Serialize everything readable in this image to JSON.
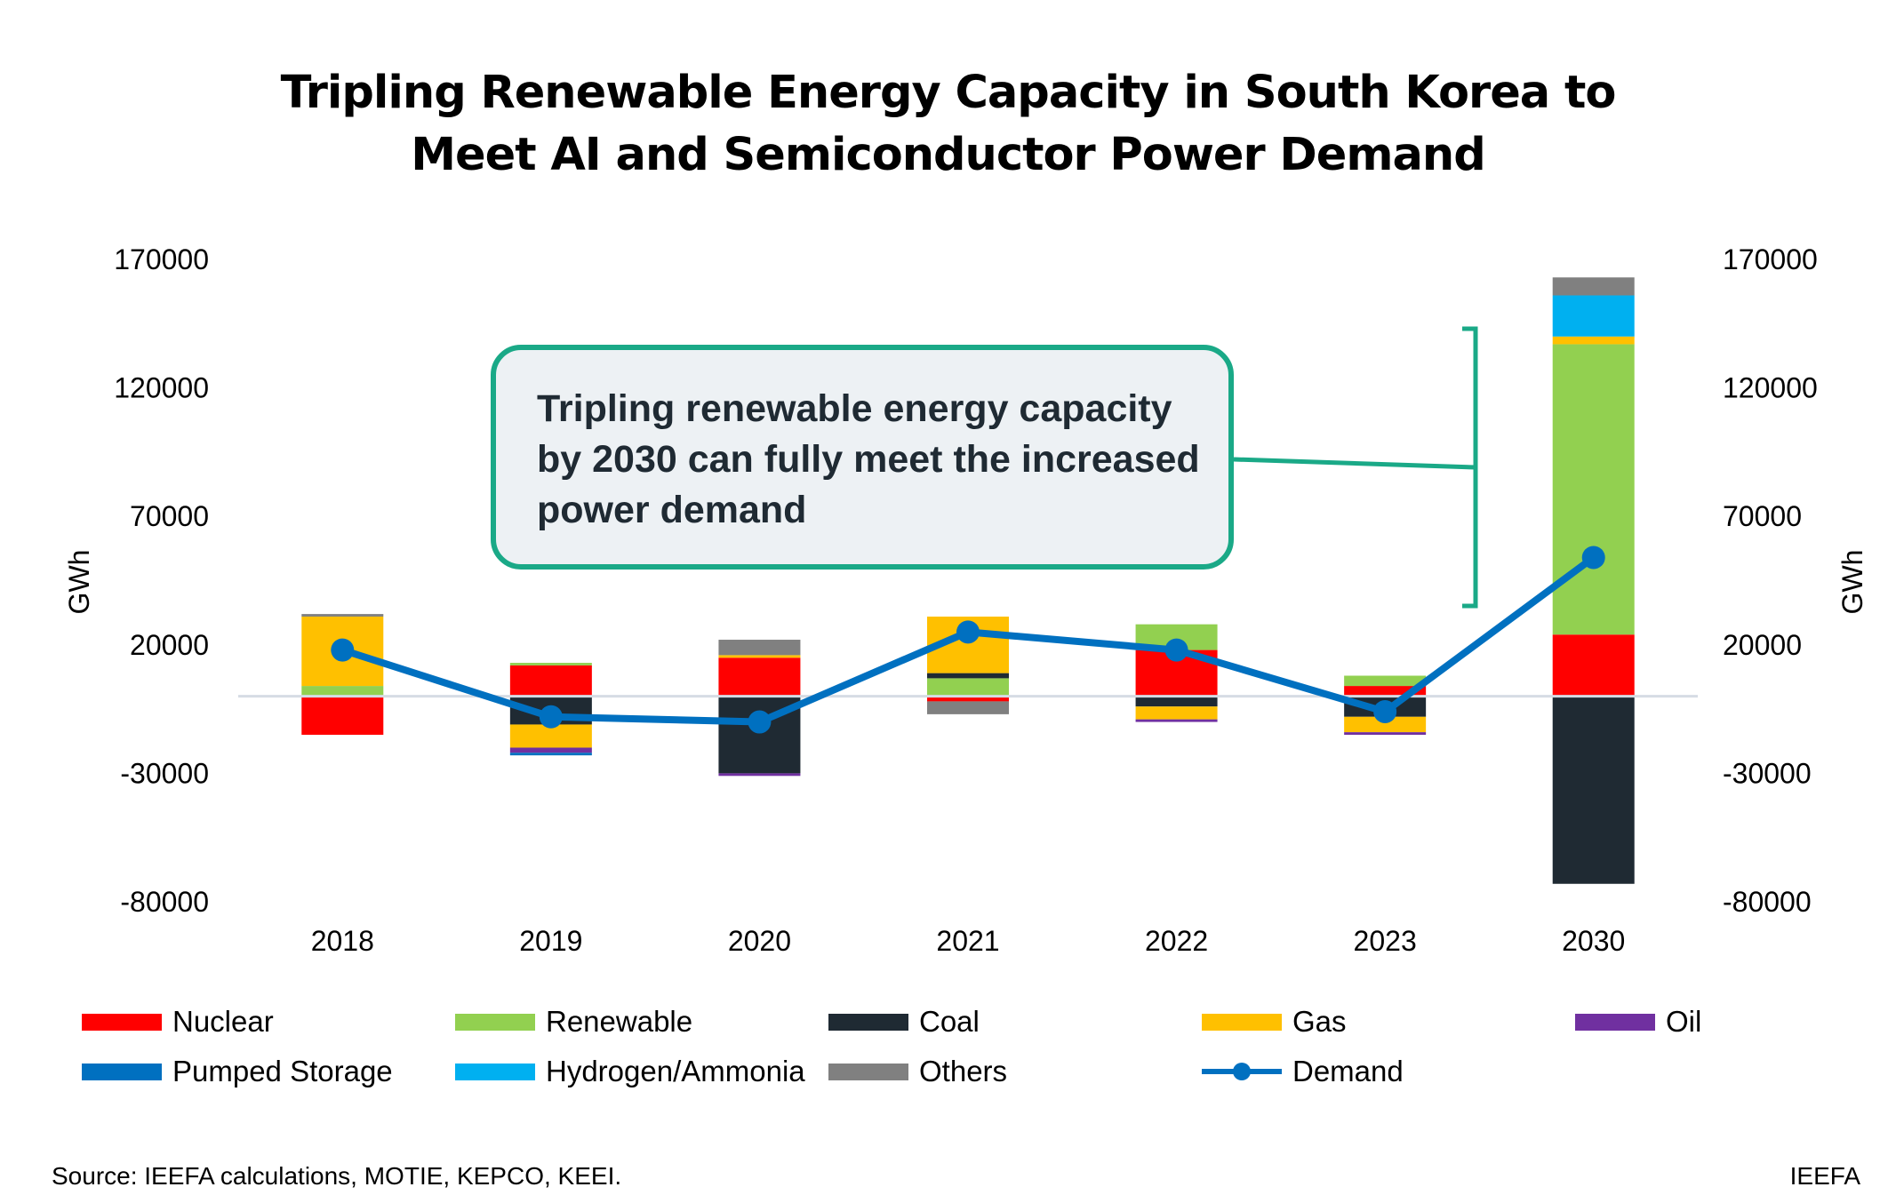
{
  "title_line1": "Tripling Renewable Energy Capacity in South Korea to",
  "title_line2": "Meet AI and Semiconductor Power Demand",
  "callout": "Tripling renewable energy capacity by 2030 can fully meet the increased power demand",
  "source": "Source: IEEFA calculations, MOTIE, KEPCO, KEEI.",
  "brand": "IEEFA",
  "colors": {
    "Nuclear": "#ff0000",
    "Renewable": "#92d050",
    "Coal": "#1f2a33",
    "Gas": "#ffc000",
    "Oil": "#7030a0",
    "Pumped Storage": "#0070c0",
    "Hydrogen/Ammonia": "#00b0f0",
    "Others": "#808080",
    "Demand": "#0070c0",
    "callout_border": "#1aa987",
    "callout_fill": "#edf1f4"
  },
  "chart_data": {
    "type": "bar",
    "stacked": true,
    "title": "Tripling Renewable Energy Capacity in South Korea to Meet AI and Semiconductor Power Demand",
    "categories": [
      "2018",
      "2019",
      "2020",
      "2021",
      "2022",
      "2023",
      "2030"
    ],
    "ylabel": "GWh",
    "y2label": "GWh",
    "ylim": [
      -80000,
      170000
    ],
    "y2lim": [
      -80000,
      170000
    ],
    "yticks": [
      170000,
      120000,
      70000,
      20000,
      -30000,
      -80000
    ],
    "series": [
      {
        "name": "Nuclear",
        "values": [
          -15000,
          12000,
          15000,
          -2000,
          18000,
          4000,
          24000
        ]
      },
      {
        "name": "Renewable",
        "values": [
          4000,
          1000,
          0,
          7000,
          10000,
          4000,
          113000
        ]
      },
      {
        "name": "Coal",
        "values": [
          0,
          -11000,
          -30000,
          2000,
          -4000,
          -8000,
          -73000
        ]
      },
      {
        "name": "Gas",
        "values": [
          27000,
          -9000,
          1000,
          22000,
          -5000,
          -6000,
          3000
        ]
      },
      {
        "name": "Oil",
        "values": [
          0,
          -2000,
          -1000,
          0,
          -1000,
          -1000,
          0
        ]
      },
      {
        "name": "Pumped Storage",
        "values": [
          0,
          -1000,
          0,
          0,
          0,
          0,
          0
        ]
      },
      {
        "name": "Hydrogen/Ammonia",
        "values": [
          0,
          0,
          0,
          0,
          0,
          0,
          16000
        ]
      },
      {
        "name": "Others",
        "values": [
          1000,
          0,
          6000,
          -5000,
          0,
          0,
          7000
        ]
      }
    ],
    "line_series": {
      "name": "Demand",
      "values": [
        18000,
        -8000,
        -10000,
        25000,
        18000,
        -6000,
        54000
      ]
    },
    "legend": [
      "Nuclear",
      "Renewable",
      "Coal",
      "Gas",
      "Oil",
      "Pumped Storage",
      "Hydrogen/Ammonia",
      "Others",
      "Demand"
    ],
    "legend_position": "bottom",
    "grid": false
  }
}
